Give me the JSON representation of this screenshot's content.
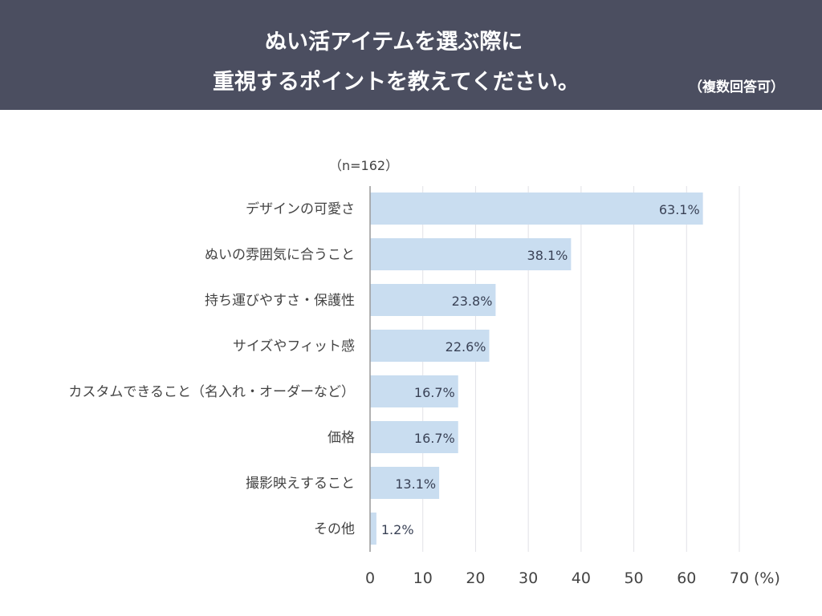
{
  "header": {
    "title_line1": "ぬい活アイテムを選ぶ際に",
    "title_line2": "重視するポイントを教えてください。",
    "note": "（複数回答可）"
  },
  "sample": "（n=162）",
  "chart_data": {
    "type": "bar",
    "orientation": "horizontal",
    "categories": [
      "デザインの可愛さ",
      "ぬいの雰囲気に合うこと",
      "持ち運びやすさ・保護性",
      "サイズやフィット感",
      "カスタムできること（名入れ・オーダーなど）",
      "価格",
      "撮影映えすること",
      "その他"
    ],
    "values": [
      63.1,
      38.1,
      23.8,
      22.6,
      16.7,
      16.7,
      13.1,
      1.2
    ],
    "data_labels": [
      "63.1%",
      "38.1%",
      "23.8%",
      "22.6%",
      "16.7%",
      "16.7%",
      "13.1%",
      "1.2%"
    ],
    "xlim": [
      0,
      70
    ],
    "xticks": [
      "0",
      "10",
      "20",
      "30",
      "40",
      "50",
      "60",
      "70"
    ],
    "xunit": "(%)",
    "grid": true,
    "bar_color": "#c9ddf0"
  }
}
